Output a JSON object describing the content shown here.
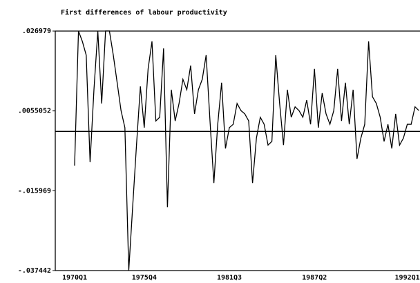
{
  "chart_data": {
    "type": "line",
    "title": "First differences of labour productivity",
    "categories": [
      "1970Q1",
      null,
      null,
      null,
      null,
      null,
      null,
      null,
      null,
      null,
      null,
      null,
      null,
      null,
      null,
      null,
      null,
      null,
      "1975Q4",
      null,
      null,
      null,
      null,
      null,
      null,
      null,
      null,
      null,
      null,
      null,
      null,
      null,
      null,
      null,
      null,
      null,
      null,
      null,
      null,
      null,
      "1981Q3",
      null,
      null,
      null,
      null,
      null,
      null,
      null,
      null,
      null,
      null,
      null,
      null,
      null,
      null,
      null,
      null,
      null,
      null,
      null,
      null,
      null,
      "1987Q2",
      null,
      null,
      null,
      null,
      null,
      null,
      null,
      null,
      null,
      null,
      null,
      null,
      null,
      null,
      null,
      null,
      null,
      null,
      null,
      null,
      null,
      null,
      null,
      "1992Q1",
      null,
      null,
      null
    ],
    "values": [
      -0.0092,
      0.027,
      0.0242,
      0.0205,
      -0.0083,
      0.0112,
      0.027,
      0.0075,
      0.027,
      0.027,
      0.0205,
      0.0131,
      0.0056,
      0.001,
      -0.0374,
      -0.0204,
      -0.0037,
      0.0121,
      0.001,
      0.0168,
      0.0242,
      0.0028,
      0.0038,
      0.0223,
      -0.0204,
      0.0112,
      0.0028,
      0.0075,
      0.014,
      0.0112,
      0.0177,
      0.0047,
      0.0112,
      0.014,
      0.0205,
      0.0028,
      -0.0139,
      0.0019,
      0.0131,
      -0.0046,
      0.001,
      0.0019,
      0.0075,
      0.0056,
      0.0047,
      0.0028,
      -0.0139,
      -0.0018,
      0.0038,
      0.0019,
      -0.0037,
      -0.0027,
      0.0205,
      0.0075,
      -0.0037,
      0.0112,
      0.0038,
      0.0066,
      0.0056,
      0.0038,
      0.0084,
      0.0019,
      0.0168,
      0.001,
      0.0103,
      0.0047,
      0.0019,
      0.0056,
      0.0168,
      0.0028,
      0.0131,
      0.0019,
      0.0112,
      -0.0074,
      -0.0018,
      0.0019,
      0.0242,
      0.0093,
      0.0075,
      0.0038,
      -0.0027,
      0.0019,
      -0.0046,
      0.0047,
      -0.0037,
      -0.0018,
      0.0019,
      0.0019,
      0.0066,
      0.0056
    ],
    "color": "#000000",
    "ylim": [
      -0.037442,
      0.026979
    ],
    "yticks": [
      {
        "value": -0.037442,
        "label": "-.037442"
      },
      {
        "value": -0.015969,
        "label": "-.015969"
      },
      {
        "value": 0.0055052,
        "label": ".0055052"
      },
      {
        "value": 0.026979,
        "label": ".026979"
      }
    ]
  }
}
